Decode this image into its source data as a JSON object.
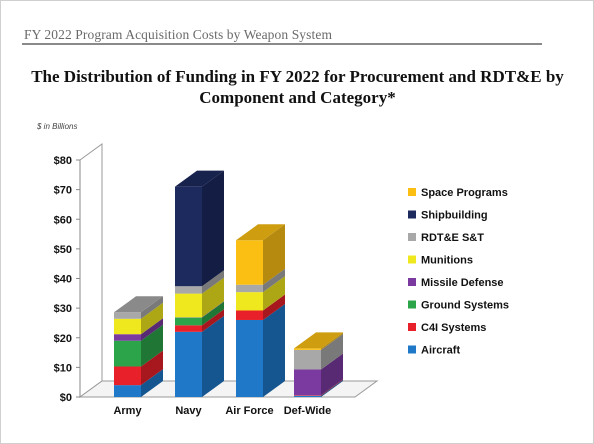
{
  "header": {
    "title": "FY 2022 Program Acquisition Costs by Weapon System"
  },
  "chart_data": {
    "type": "bar",
    "stacked": true,
    "three_d": true,
    "title": "The Distribution of Funding in FY 2022 for Procurement and RDT&E by Component and Category*",
    "unit_label": "$ in Billions",
    "xlabel": "",
    "ylabel": "",
    "ylim": [
      0,
      80
    ],
    "y_ticks": [
      "$0",
      "$10",
      "$20",
      "$30",
      "$40",
      "$50",
      "$60",
      "$70",
      "$80"
    ],
    "y_tick_values": [
      0,
      10,
      20,
      30,
      40,
      50,
      60,
      70,
      80
    ],
    "grid": false,
    "legend_position": "right",
    "categories": [
      "Army",
      "Navy",
      "Air Force",
      "Def-Wide"
    ],
    "series": [
      {
        "name": "Aircraft",
        "color": "#1f78c8",
        "values": [
          4.0,
          22.0,
          26.0,
          0.4
        ]
      },
      {
        "name": "C4I Systems",
        "color": "#e8202a",
        "values": [
          6.3,
          2.2,
          3.2,
          0.2
        ]
      },
      {
        "name": "Ground Systems",
        "color": "#2ca44a",
        "values": [
          8.7,
          2.6,
          0.0,
          0.0
        ]
      },
      {
        "name": "Missile Defense",
        "color": "#7a3aa0",
        "values": [
          2.2,
          0.1,
          0.0,
          8.7
        ]
      },
      {
        "name": "Munitions",
        "color": "#f0e81e",
        "values": [
          5.2,
          8.0,
          6.2,
          0.0
        ]
      },
      {
        "name": "RDT&E S&T",
        "color": "#a8a8a8",
        "values": [
          2.2,
          2.5,
          2.5,
          6.6
        ]
      },
      {
        "name": "Shipbuilding",
        "color": "#1c2a5e",
        "values": [
          0.0,
          33.6,
          0.0,
          0.0
        ]
      },
      {
        "name": "Space Programs",
        "color": "#fbbf14",
        "values": [
          0.0,
          0.0,
          15.0,
          0.5
        ]
      }
    ]
  }
}
